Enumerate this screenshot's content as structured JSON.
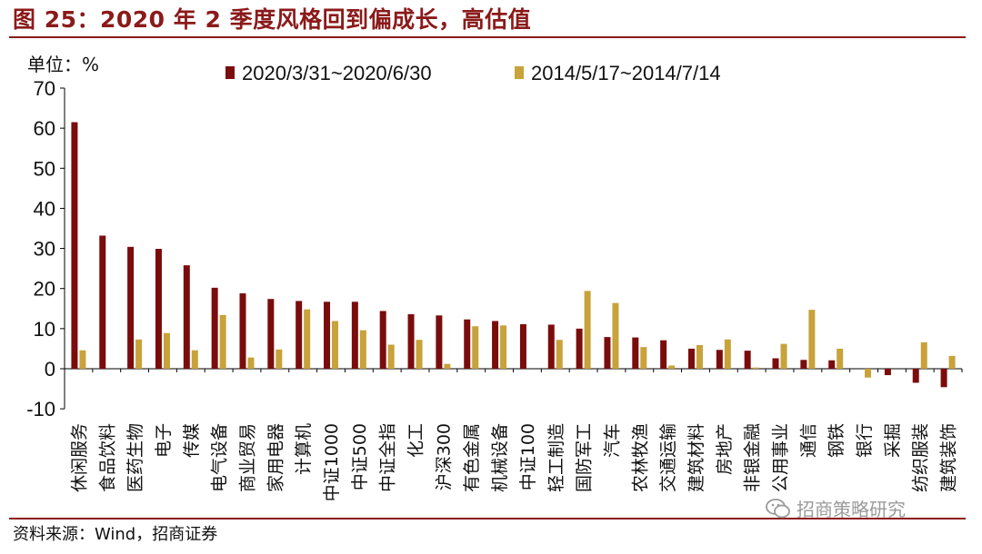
{
  "figure_title": "图 25：2020 年 2 季度风格回到偏成长，高估值",
  "source_note": "资料来源：Wind，招商证券",
  "watermark": "招商策略研究",
  "colors": {
    "series_a": "#7b0c0c",
    "series_b": "#c8a23a",
    "accent": "#8b1a1a"
  },
  "chart_data": {
    "type": "bar",
    "unit_label": "单位：%",
    "ylim": [
      -10,
      70
    ],
    "yticks": [
      -10,
      0,
      10,
      20,
      30,
      40,
      50,
      60,
      70
    ],
    "legend_position": "top",
    "categories": [
      "休闲服务",
      "食品饮料",
      "医药生物",
      "电子",
      "传媒",
      "电气设备",
      "商业贸易",
      "家用电器",
      "计算机",
      "中证1000",
      "中证500",
      "中证全指",
      "化工",
      "沪深300",
      "有色金属",
      "机械设备",
      "中证100",
      "轻工制造",
      "国防军工",
      "汽车",
      "农林牧渔",
      "交通运输",
      "建筑材料",
      "房地产",
      "非银金融",
      "公用事业",
      "通信",
      "钢铁",
      "银行",
      "采掘",
      "纺织服装",
      "建筑装饰"
    ],
    "series": [
      {
        "name": "2020/3/31~2020/6/30",
        "values": [
          61.5,
          33.2,
          30.4,
          29.9,
          25.8,
          20.2,
          18.8,
          17.4,
          16.9,
          16.7,
          16.7,
          14.4,
          13.6,
          13.3,
          12.3,
          11.9,
          11.1,
          11.0,
          10.0,
          7.9,
          7.8,
          7.1,
          5.0,
          4.7,
          4.5,
          2.6,
          2.2,
          2.1,
          0.0,
          -1.6,
          -3.5,
          -4.6
        ]
      },
      {
        "name": "2014/5/17~2014/7/14",
        "values": [
          4.6,
          0.0,
          7.3,
          8.9,
          4.6,
          13.4,
          2.8,
          4.8,
          14.8,
          11.9,
          9.6,
          6.0,
          7.2,
          1.2,
          10.6,
          10.8,
          0.0,
          7.2,
          19.4,
          16.4,
          5.4,
          0.8,
          5.9,
          7.3,
          0.3,
          6.2,
          14.7,
          5.0,
          -2.2,
          0.0,
          6.6,
          3.2
        ]
      }
    ]
  }
}
